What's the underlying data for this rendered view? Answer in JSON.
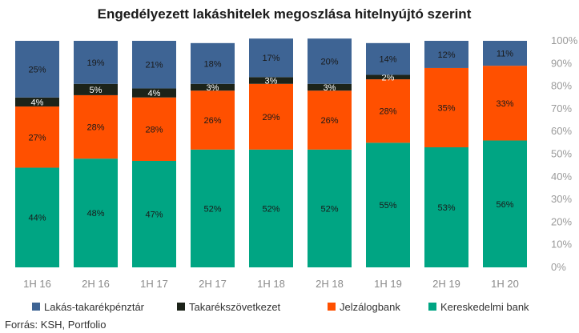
{
  "chart_data": {
    "type": "bar",
    "stacked": true,
    "title": "Engedélyezett lakáshitelek megoszlása hitelnyújtó szerint",
    "categories": [
      "1H 16",
      "2H 16",
      "1H 17",
      "2H 17",
      "1H 18",
      "2H 18",
      "1H 19",
      "2H 19",
      "1H 20"
    ],
    "series": [
      {
        "name": "Kereskedelmi bank",
        "color": "#00a583",
        "values": [
          44,
          48,
          47,
          52,
          52,
          52,
          55,
          53,
          56
        ],
        "labels": [
          "44%",
          "48%",
          "47%",
          "52%",
          "52%",
          "52%",
          "55%",
          "53%",
          "56%"
        ]
      },
      {
        "name": "Jelzálogbank",
        "color": "#ff5000",
        "values": [
          27,
          28,
          28,
          26,
          29,
          26,
          28,
          35,
          33
        ],
        "labels": [
          "27%",
          "28%",
          "28%",
          "26%",
          "29%",
          "26%",
          "28%",
          "35%",
          "33%"
        ]
      },
      {
        "name": "Takarékszövetkezet",
        "color": "#1c2319",
        "values": [
          4,
          5,
          4,
          3,
          3,
          3,
          2,
          0,
          0
        ],
        "labels": [
          "4%",
          "5%",
          "4%",
          "3%",
          "3%",
          "3%",
          "2%",
          "",
          ""
        ]
      },
      {
        "name": "Lakás-takarékpénztár",
        "color": "#3e6494",
        "values": [
          25,
          19,
          21,
          18,
          17,
          20,
          14,
          12,
          11
        ],
        "labels": [
          "25%",
          "19%",
          "21%",
          "18%",
          "17%",
          "20%",
          "14%",
          "12%",
          "11%"
        ]
      }
    ],
    "legend_order": [
      "Lakás-takarékpénztár",
      "Takarékszövetkezet",
      "Jelzálogbank",
      "Kereskedelmi bank"
    ],
    "legend_position": "bottom",
    "ylim": [
      0,
      100
    ],
    "yticks": [
      "0%",
      "10%",
      "20%",
      "30%",
      "40%",
      "50%",
      "60%",
      "70%",
      "80%",
      "90%",
      "100%"
    ],
    "yaxis_side": "right",
    "grid": false
  },
  "source": "Forrás: KSH, Portfolio"
}
